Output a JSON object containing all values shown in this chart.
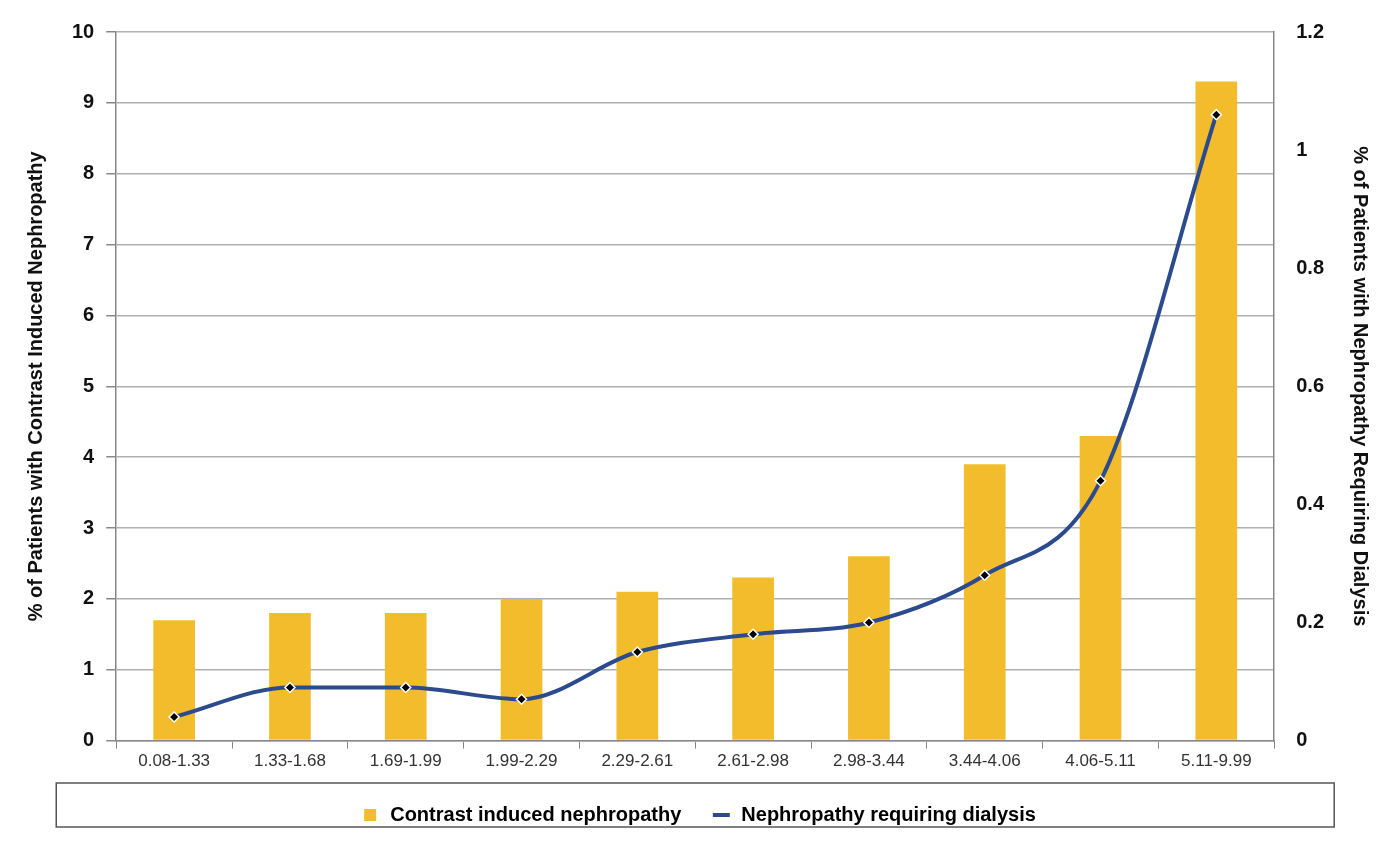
{
  "chart_data": {
    "type": "bar",
    "ylabel": "% of Patients with Contrast Induced Nephropathy",
    "y2label": "% of Patients with Nephropathy Requiring Dialysis",
    "categories": [
      "0.08-1.33",
      "1.33-1.68",
      "1.69-1.99",
      "1.99-2.29",
      "2.29-2.61",
      "2.61-2.98",
      "2.98-3.44",
      "3.44-4.06",
      "4.06-5.11",
      "5.11-9.99"
    ],
    "series": [
      {
        "name": "Contrast induced nephropathy",
        "color": "#f2bc2c",
        "values": [
          1.7,
          1.8,
          1.8,
          2.0,
          2.1,
          2.3,
          2.6,
          3.9,
          4.3,
          9.3
        ]
      },
      {
        "name": "Nephropathy requiring dialysis",
        "type": "line",
        "axis": "y2",
        "color": "#2c4a8e",
        "marker": "diamond",
        "values": [
          0.04,
          0.09,
          0.09,
          0.07,
          0.15,
          0.18,
          0.2,
          0.28,
          0.44,
          1.06
        ]
      }
    ],
    "ylim": [
      0,
      10
    ],
    "yticks": [
      0,
      1,
      2,
      3,
      4,
      5,
      6,
      7,
      8,
      9,
      10
    ],
    "y2lim": [
      0,
      1.2
    ],
    "y2ticks": [
      0,
      0.2,
      0.4,
      0.6,
      0.8,
      1,
      1.2
    ],
    "grid": "y",
    "legend": "bottom"
  }
}
